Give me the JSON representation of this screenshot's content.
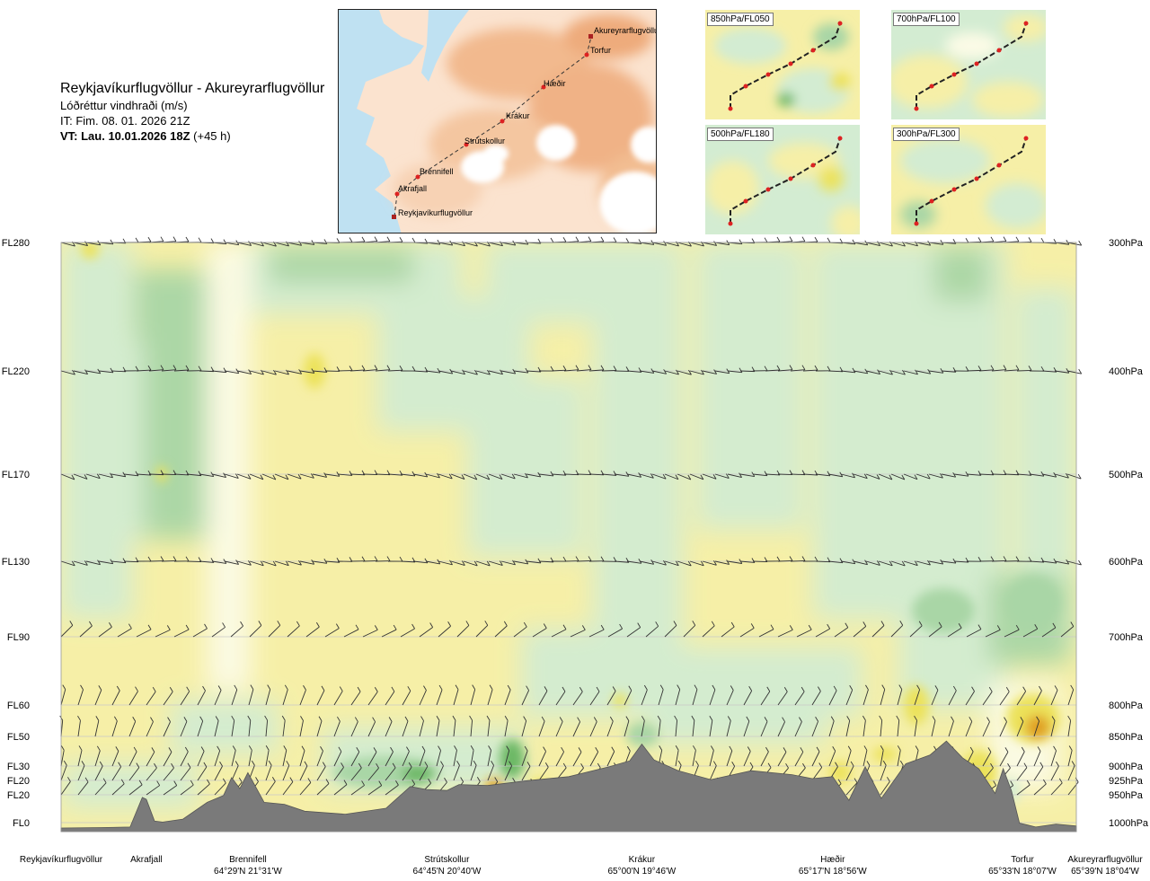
{
  "header": {
    "route": "Reykjavíkurflugvöllur - Akureyrarflugvöllur",
    "product": "Lóðréttur vindhraði (m/s)",
    "issue_time": "IT: Fim. 08. 01. 2026 21Z",
    "valid_prefix": "VT: Lau. 10.01.2026 18Z",
    "valid_suffix": " (+45 h)"
  },
  "map": {
    "labels": [
      "Akureyrarflugvöllur",
      "Torfur",
      "Hæðir",
      "Krákur",
      "Strútskollur",
      "Brennifell",
      "Akrafjall",
      "Reykjavíkurflugvöllur"
    ]
  },
  "mini_maps": [
    {
      "label": "850hPa/FL050"
    },
    {
      "label": "700hPa/FL100"
    },
    {
      "label": "500hPa/FL180"
    },
    {
      "label": "300hPa/FL300"
    }
  ],
  "colors": {
    "green_light": "#d3ecd2",
    "green_mid": "#a9d6a6",
    "green_dark": "#6cb865",
    "yellow_light": "#f6efa7",
    "yellow_mid": "#ece25a",
    "orange": "#e0a020",
    "ivory": "#fbfbe6",
    "terrain": "#7a7a7a",
    "grid": "#bbbbbb"
  },
  "chart_data": {
    "type": "heatmap",
    "title": "Lóðréttur vindhraði (m/s)",
    "y_axis_left": {
      "labels": [
        "FL280",
        "FL220",
        "FL170",
        "FL130",
        "FL90",
        "FL60",
        "FL50",
        "FL30",
        "FL20",
        "FL20",
        "FL0"
      ]
    },
    "y_axis_right": {
      "labels": [
        "300hPa",
        "400hPa",
        "500hPa",
        "600hPa",
        "700hPa",
        "800hPa",
        "850hPa",
        "900hPa",
        "925hPa",
        "950hPa",
        "1000hPa"
      ]
    },
    "pressure_levels_hpa": [
      300,
      400,
      500,
      600,
      700,
      800,
      850,
      900,
      925,
      950,
      1000
    ],
    "x_axis": {
      "range_km": [
        0,
        250
      ],
      "locations": [
        {
          "name": "Reykjavíkurflugvöllur",
          "coords": "",
          "km": 0
        },
        {
          "name": "Akrafjall",
          "coords": "",
          "km": 21
        },
        {
          "name": "Brennifell",
          "coords": "64°29'N 21°31'W",
          "km": 46
        },
        {
          "name": "Strútskollur",
          "coords": "64°45'N 20°40'W",
          "km": 95
        },
        {
          "name": "Krákur",
          "coords": "65°00'N 19°46'W",
          "km": 143
        },
        {
          "name": "Hæðir",
          "coords": "65°17'N 18°56'W",
          "km": 190
        },
        {
          "name": "Torfur",
          "coords": "65°33'N 18°07'W",
          "km": 236
        },
        {
          "name": "Akureyrarflugvöllur",
          "coords": "65°39'N 18°04'W",
          "km": 250
        }
      ]
    },
    "terrain_profile_m": {
      "km": [
        0,
        10,
        17,
        20,
        21,
        23,
        25,
        30,
        36,
        40,
        42,
        44,
        46,
        48,
        50,
        55,
        60,
        70,
        80,
        86,
        90,
        95,
        98,
        105,
        115,
        125,
        135,
        140,
        143,
        146,
        152,
        160,
        170,
        180,
        185,
        190,
        194,
        198,
        202,
        208,
        214,
        218,
        222,
        226,
        230,
        232,
        234,
        236,
        238,
        240,
        245,
        250
      ],
      "elev": [
        0,
        5,
        10,
        310,
        290,
        70,
        60,
        90,
        260,
        330,
        510,
        400,
        560,
        410,
        260,
        240,
        170,
        140,
        200,
        420,
        390,
        380,
        440,
        430,
        480,
        520,
        620,
        680,
        850,
        690,
        580,
        490,
        580,
        540,
        500,
        520,
        280,
        620,
        300,
        650,
        740,
        880,
        710,
        600,
        350,
        600,
        380,
        50,
        30,
        10,
        40,
        20
      ]
    },
    "wind_barb_levels_hpa": [
      300,
      400,
      500,
      600,
      700,
      800,
      850,
      900,
      925,
      950
    ],
    "contour_levels_ms": [
      -0.5,
      -0.2,
      -0.05,
      0.05,
      0.2,
      0.5,
      1.0
    ]
  }
}
